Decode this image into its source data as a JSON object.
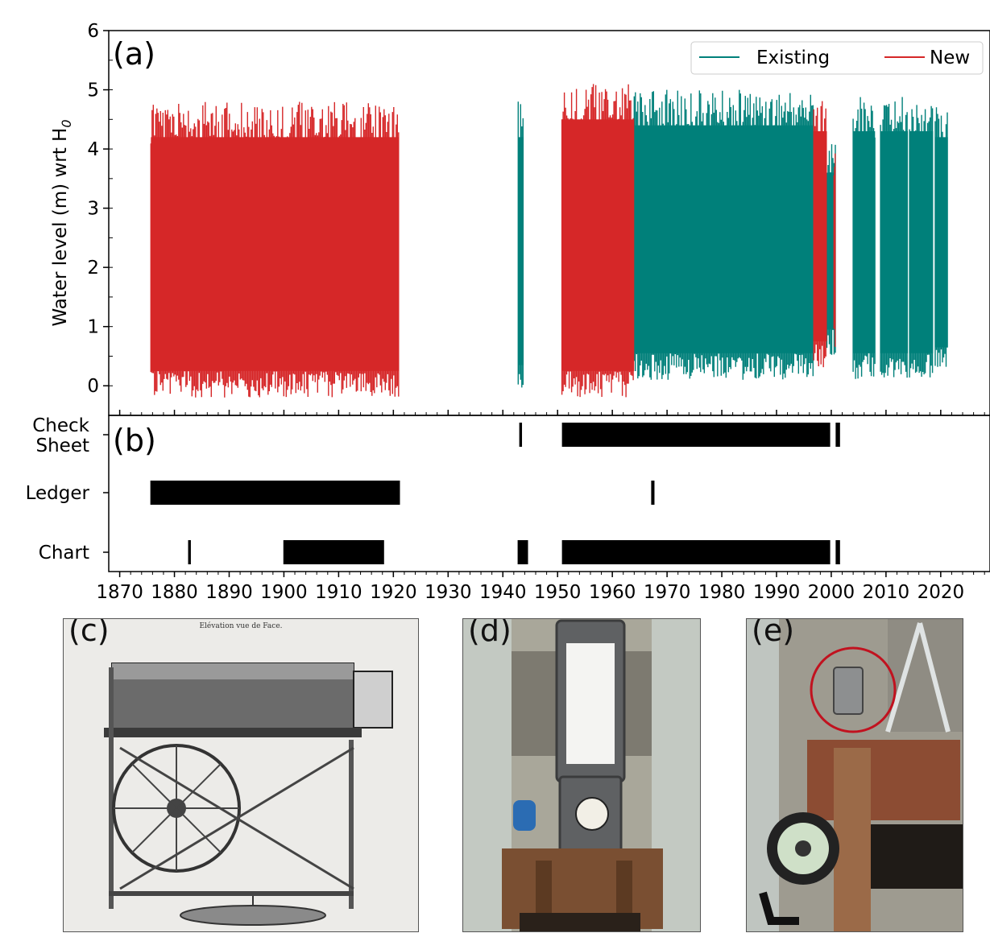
{
  "chart_data": [
    {
      "type": "line",
      "panel_label": "(a)",
      "ylabel": "Water level (m) wrt H",
      "ylabel_subscript": "0",
      "xlim": [
        1868,
        2029
      ],
      "ylim": [
        -0.5,
        6
      ],
      "yticks": [
        "0",
        "1",
        "2",
        "3",
        "4",
        "5",
        "6"
      ],
      "legend": {
        "placement": "top-right"
      },
      "series": [
        {
          "name": "Existing",
          "color": "#00807a",
          "segments": [
            {
              "x": [
                1942.8,
                1943.8
              ],
              "y_range": [
                -0.1,
                4.8
              ]
            },
            {
              "x": [
                1964.0,
                1996.8
              ],
              "y_range": [
                0.1,
                5.0
              ]
            },
            {
              "x": [
                1999.2,
                2000.8
              ],
              "y_range": [
                0.5,
                4.2
              ]
            },
            {
              "x": [
                2004.0,
                2008.0
              ],
              "y_range": [
                0.1,
                4.9
              ]
            },
            {
              "x": [
                2009.0,
                2014.0
              ],
              "y_range": [
                0.1,
                4.9
              ]
            },
            {
              "x": [
                2014.3,
                2018.6
              ],
              "y_range": [
                0.1,
                4.9
              ]
            },
            {
              "x": [
                2019.0,
                2021.3
              ],
              "y_range": [
                0.2,
                4.8
              ]
            }
          ]
        },
        {
          "name": "New",
          "color": "#d62728",
          "segments": [
            {
              "x": [
                1875.7,
                1921.0
              ],
              "y_range": [
                -0.2,
                4.8
              ]
            },
            {
              "x": [
                1950.8,
                1964.0
              ],
              "y_range": [
                -0.2,
                5.1
              ]
            },
            {
              "x": [
                1996.8,
                1999.2
              ],
              "y_range": [
                0.3,
                4.9
              ]
            },
            {
              "x": [
                2000.5,
                2000.8
              ],
              "y_range": [
                0.6,
                4.3
              ]
            }
          ]
        }
      ]
    },
    {
      "type": "bar",
      "panel_label": "(b)",
      "xlim": [
        1868,
        2029
      ],
      "xticks": [
        "1870",
        "1880",
        "1890",
        "1900",
        "1910",
        "1920",
        "1930",
        "1940",
        "1950",
        "1960",
        "1970",
        "1980",
        "1990",
        "2000",
        "2010",
        "2020"
      ],
      "categories": [
        "Check Sheet",
        "Ledger",
        "Chart"
      ],
      "category_labels": [
        [
          "Check",
          "Sheet"
        ],
        [
          "Ledger"
        ],
        [
          "Chart"
        ]
      ],
      "color": "#000000",
      "intervals": [
        {
          "category": "Check Sheet",
          "ranges": [
            [
              1943.0,
              1943.5
            ],
            [
              1950.8,
              1999.8
            ],
            [
              2000.8,
              2001.6
            ]
          ]
        },
        {
          "category": "Ledger",
          "ranges": [
            [
              1875.6,
              1921.2
            ],
            [
              1967.1,
              1967.7
            ]
          ]
        },
        {
          "category": "Chart",
          "ranges": [
            [
              1882.5,
              1883.0
            ],
            [
              1899.9,
              1918.3
            ],
            [
              1942.7,
              1944.6
            ],
            [
              1950.8,
              1999.8
            ],
            [
              2000.8,
              2001.6
            ]
          ]
        }
      ]
    }
  ],
  "photos": [
    {
      "label": "(c)",
      "caption": "Elévation vue de Face."
    },
    {
      "label": "(d)"
    },
    {
      "label": "(e)"
    }
  ]
}
